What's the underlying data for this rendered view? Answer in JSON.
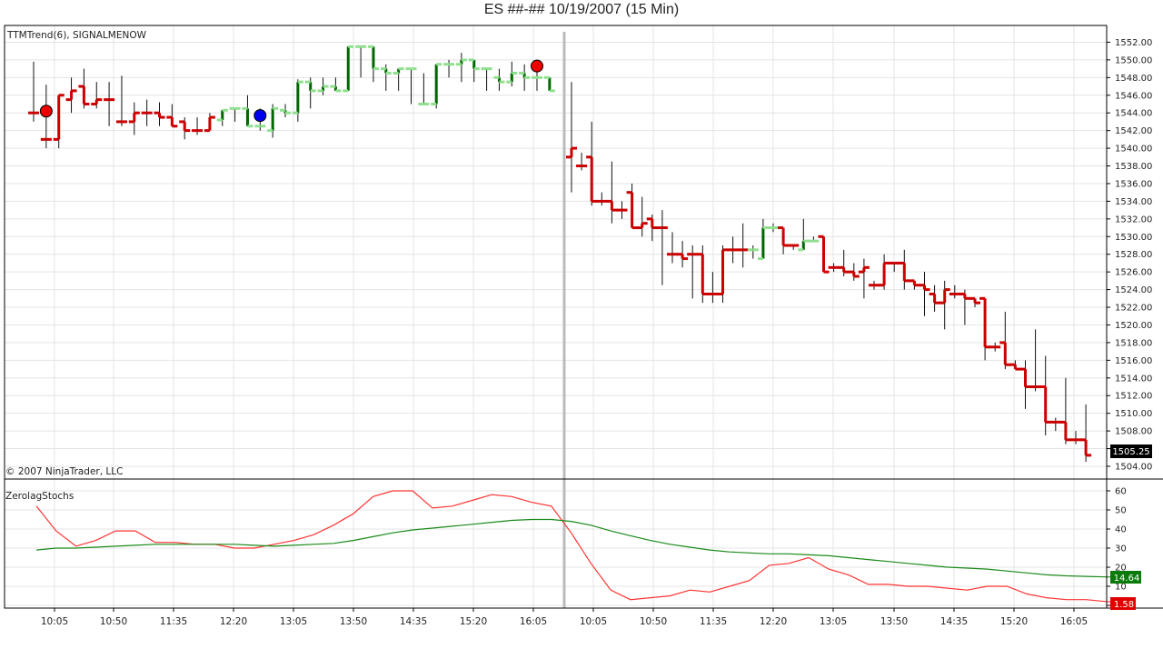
{
  "title": "ES ##-##  10/19/2007  (15 Min)",
  "colors": {
    "red": "#cc0000",
    "green": "#90e090",
    "dark_green": "#006600",
    "blue": "#0000ee",
    "signal_red": "#ee0000",
    "grid": "#e4e4e4",
    "stoch": "#ff3333",
    "stoch_signal": "#1a8a1a",
    "divider": "#bbbbbb"
  },
  "price_panel": {
    "indicator_label": "TTMTrend(6), SIGNALMENOW",
    "copyright": "© 2007 NinjaTrader, LLC",
    "last_price": "1505.25"
  },
  "stoch_panel": {
    "label": "ZerolagStochs",
    "badge_green": "14.64",
    "badge_red": "1.58"
  },
  "chart_data": [
    {
      "type": "ohlc",
      "title": "ES ##-##  10/19/2007  (15 Min)",
      "x_tick_labels": [
        "10:05",
        "10:50",
        "11:35",
        "12:20",
        "13:05",
        "13:50",
        "14:35",
        "15:20",
        "16:05",
        "10:05",
        "10:50",
        "11:35",
        "12:20",
        "13:05",
        "13:50",
        "14:35",
        "15:20",
        "16:05"
      ],
      "y_ticks": [
        "1504.00",
        "1506.00",
        "1508.00",
        "1510.00",
        "1512.00",
        "1514.00",
        "1516.00",
        "1518.00",
        "1520.00",
        "1522.00",
        "1524.00",
        "1526.00",
        "1528.00",
        "1530.00",
        "1532.00",
        "1534.00",
        "1536.00",
        "1538.00",
        "1540.00",
        "1542.00",
        "1544.00",
        "1546.00",
        "1548.00",
        "1550.00",
        "1552.00"
      ],
      "ylim": [
        1503,
        1553
      ],
      "grid": true,
      "bars_day1": [
        {
          "o": 1544,
          "h": 1549.8,
          "l": 1543,
          "c": 1544,
          "t": "r"
        },
        {
          "o": 1541,
          "h": 1547.2,
          "l": 1540,
          "c": 1541,
          "t": "r"
        },
        {
          "o": 1541,
          "h": 1546,
          "l": 1540,
          "c": 1546,
          "t": "r"
        },
        {
          "o": 1545.5,
          "h": 1548,
          "l": 1544,
          "c": 1546.5,
          "t": "r"
        },
        {
          "o": 1547,
          "h": 1549,
          "l": 1544.5,
          "c": 1545,
          "t": "r"
        },
        {
          "o": 1545,
          "h": 1547.5,
          "l": 1544.5,
          "c": 1545.5,
          "t": "r"
        },
        {
          "o": 1545.5,
          "h": 1547.5,
          "l": 1542.5,
          "c": 1545.5,
          "t": "r"
        },
        {
          "o": 1543,
          "h": 1548.2,
          "l": 1542.5,
          "c": 1543,
          "t": "r"
        },
        {
          "o": 1543,
          "h": 1545.2,
          "l": 1541.5,
          "c": 1544,
          "t": "r"
        },
        {
          "o": 1544,
          "h": 1545.5,
          "l": 1542.5,
          "c": 1544,
          "t": "r"
        },
        {
          "o": 1544,
          "h": 1545.2,
          "l": 1542.5,
          "c": 1543.5,
          "t": "r"
        },
        {
          "o": 1543.5,
          "h": 1545,
          "l": 1542.5,
          "c": 1542.5,
          "t": "r"
        },
        {
          "o": 1543,
          "h": 1543.5,
          "l": 1541,
          "c": 1542,
          "t": "r"
        },
        {
          "o": 1542,
          "h": 1543.5,
          "l": 1541.5,
          "c": 1542,
          "t": "r"
        },
        {
          "o": 1542,
          "h": 1544,
          "l": 1542.5,
          "c": 1543.5,
          "t": "r"
        },
        {
          "o": 1543.2,
          "h": 1544.3,
          "l": 1542.5,
          "c": 1544.3,
          "t": "g"
        },
        {
          "o": 1544.5,
          "h": 1544.5,
          "l": 1543,
          "c": 1544.5,
          "t": "g"
        },
        {
          "o": 1544.5,
          "h": 1546,
          "l": 1542.5,
          "c": 1542.5,
          "t": "g"
        },
        {
          "o": 1542.5,
          "h": 1544.5,
          "l": 1542,
          "c": 1542.5,
          "t": "g"
        },
        {
          "o": 1542,
          "h": 1545,
          "l": 1541.2,
          "c": 1544.5,
          "t": "g"
        },
        {
          "o": 1544.3,
          "h": 1545,
          "l": 1543.5,
          "c": 1544,
          "t": "g"
        },
        {
          "o": 1544,
          "h": 1547.8,
          "l": 1543,
          "c": 1547.5,
          "t": "g"
        },
        {
          "o": 1547.5,
          "h": 1548,
          "l": 1544.5,
          "c": 1546.5,
          "t": "g"
        },
        {
          "o": 1546.5,
          "h": 1548,
          "l": 1546,
          "c": 1547,
          "t": "g"
        },
        {
          "o": 1547,
          "h": 1548,
          "l": 1546.5,
          "c": 1546.5,
          "t": "g"
        },
        {
          "o": 1546.5,
          "h": 1551.5,
          "l": 1546.5,
          "c": 1551.5,
          "t": "g"
        },
        {
          "o": 1551.5,
          "h": 1551.5,
          "l": 1548,
          "c": 1551.5,
          "t": "g"
        },
        {
          "o": 1551.5,
          "h": 1551.5,
          "l": 1547.5,
          "c": 1549,
          "t": "g"
        },
        {
          "o": 1549,
          "h": 1549.5,
          "l": 1546.5,
          "c": 1548.5,
          "t": "g"
        },
        {
          "o": 1548.5,
          "h": 1549,
          "l": 1546.5,
          "c": 1549,
          "t": "g"
        },
        {
          "o": 1549,
          "h": 1549,
          "l": 1545,
          "c": 1549,
          "t": "g"
        },
        {
          "o": 1545,
          "h": 1548.5,
          "l": 1545,
          "c": 1545,
          "t": "g"
        },
        {
          "o": 1545,
          "h": 1549.5,
          "l": 1544.5,
          "c": 1549.5,
          "t": "g"
        },
        {
          "o": 1549.5,
          "h": 1550,
          "l": 1548,
          "c": 1549.5,
          "t": "g"
        },
        {
          "o": 1549.5,
          "h": 1550.8,
          "l": 1547.5,
          "c": 1550,
          "t": "g"
        },
        {
          "o": 1550,
          "h": 1550,
          "l": 1547.5,
          "c": 1549,
          "t": "g"
        },
        {
          "o": 1549,
          "h": 1549,
          "l": 1546.5,
          "c": 1549,
          "t": "g"
        },
        {
          "o": 1548,
          "h": 1549,
          "l": 1546.5,
          "c": 1547.5,
          "t": "g"
        },
        {
          "o": 1547.5,
          "h": 1549.8,
          "l": 1547,
          "c": 1548.5,
          "t": "g"
        },
        {
          "o": 1548.5,
          "h": 1549.5,
          "l": 1546.5,
          "c": 1548,
          "t": "g"
        },
        {
          "o": 1548,
          "h": 1550,
          "l": 1546.5,
          "c": 1548,
          "t": "g"
        },
        {
          "o": 1548,
          "h": 1548,
          "l": 1546.5,
          "c": 1546.5,
          "t": "g"
        }
      ],
      "bars_day2": [
        {
          "o": 1539,
          "h": 1547.5,
          "l": 1535,
          "c": 1540,
          "t": "r"
        },
        {
          "o": 1538,
          "h": 1539.5,
          "l": 1537.5,
          "c": 1538,
          "t": "r"
        },
        {
          "o": 1539,
          "h": 1543,
          "l": 1533.5,
          "c": 1534,
          "t": "r"
        },
        {
          "o": 1534,
          "h": 1535,
          "l": 1533.5,
          "c": 1534,
          "t": "r"
        },
        {
          "o": 1534,
          "h": 1538.5,
          "l": 1531.5,
          "c": 1533,
          "t": "r"
        },
        {
          "o": 1533,
          "h": 1534,
          "l": 1532,
          "c": 1533,
          "t": "r"
        },
        {
          "o": 1535,
          "h": 1536,
          "l": 1531,
          "c": 1531,
          "t": "r"
        },
        {
          "o": 1531,
          "h": 1534.5,
          "l": 1530,
          "c": 1531.5,
          "t": "r"
        },
        {
          "o": 1532,
          "h": 1532.5,
          "l": 1529.5,
          "c": 1531,
          "t": "r"
        },
        {
          "o": 1531,
          "h": 1533,
          "l": 1524.5,
          "c": 1531,
          "t": "r"
        },
        {
          "o": 1528,
          "h": 1530.5,
          "l": 1527,
          "c": 1528,
          "t": "r"
        },
        {
          "o": 1528,
          "h": 1529.5,
          "l": 1526.5,
          "c": 1527.5,
          "t": "r"
        },
        {
          "o": 1528,
          "h": 1529,
          "l": 1523,
          "c": 1528,
          "t": "r"
        },
        {
          "o": 1528,
          "h": 1529,
          "l": 1522.5,
          "c": 1523.5,
          "t": "r"
        },
        {
          "o": 1523.5,
          "h": 1526,
          "l": 1522.5,
          "c": 1523.5,
          "t": "r"
        },
        {
          "o": 1523.5,
          "h": 1529,
          "l": 1522.5,
          "c": 1528.5,
          "t": "r"
        },
        {
          "o": 1528.5,
          "h": 1530,
          "l": 1527,
          "c": 1528.5,
          "t": "r"
        },
        {
          "o": 1528.5,
          "h": 1531.5,
          "l": 1526.5,
          "c": 1528.5,
          "t": "r"
        },
        {
          "o": 1528.5,
          "h": 1529,
          "l": 1527.5,
          "c": 1528.5,
          "t": "g"
        },
        {
          "o": 1527.5,
          "h": 1532,
          "l": 1527.5,
          "c": 1531,
          "t": "g"
        },
        {
          "o": 1531,
          "h": 1531.5,
          "l": 1530.5,
          "c": 1531,
          "t": "g"
        },
        {
          "o": 1531,
          "h": 1531,
          "l": 1528,
          "c": 1529,
          "t": "r"
        },
        {
          "o": 1529,
          "h": 1529,
          "l": 1528.5,
          "c": 1529,
          "t": "r"
        },
        {
          "o": 1528.5,
          "h": 1532,
          "l": 1528.5,
          "c": 1529.5,
          "t": "g"
        },
        {
          "o": 1529.5,
          "h": 1530,
          "l": 1529.5,
          "c": 1529.5,
          "t": "g"
        },
        {
          "o": 1530,
          "h": 1530,
          "l": 1526,
          "c": 1526,
          "t": "r"
        },
        {
          "o": 1526.5,
          "h": 1527,
          "l": 1526,
          "c": 1526.5,
          "t": "r"
        },
        {
          "o": 1526.5,
          "h": 1528.5,
          "l": 1525.5,
          "c": 1526,
          "t": "r"
        },
        {
          "o": 1526,
          "h": 1527,
          "l": 1525,
          "c": 1525.5,
          "t": "r"
        },
        {
          "o": 1526,
          "h": 1527.5,
          "l": 1523,
          "c": 1526.5,
          "t": "r"
        },
        {
          "o": 1524.5,
          "h": 1525,
          "l": 1524,
          "c": 1524.5,
          "t": "r"
        },
        {
          "o": 1524.5,
          "h": 1528,
          "l": 1524,
          "c": 1527,
          "t": "r"
        },
        {
          "o": 1527,
          "h": 1527,
          "l": 1526,
          "c": 1527,
          "t": "r"
        },
        {
          "o": 1527,
          "h": 1528.5,
          "l": 1524,
          "c": 1525,
          "t": "r"
        },
        {
          "o": 1525,
          "h": 1525,
          "l": 1524,
          "c": 1524.5,
          "t": "r"
        },
        {
          "o": 1524.5,
          "h": 1526,
          "l": 1521,
          "c": 1524,
          "t": "r"
        },
        {
          "o": 1523.5,
          "h": 1524.5,
          "l": 1521.5,
          "c": 1522.5,
          "t": "r"
        },
        {
          "o": 1522.5,
          "h": 1525,
          "l": 1519.5,
          "c": 1524,
          "t": "r"
        },
        {
          "o": 1523.5,
          "h": 1524.5,
          "l": 1523,
          "c": 1523.5,
          "t": "r"
        },
        {
          "o": 1523.5,
          "h": 1524,
          "l": 1520,
          "c": 1523,
          "t": "r"
        },
        {
          "o": 1523,
          "h": 1523,
          "l": 1522,
          "c": 1522.5,
          "t": "r"
        },
        {
          "o": 1523,
          "h": 1523,
          "l": 1516,
          "c": 1517.5,
          "t": "r"
        },
        {
          "o": 1517.5,
          "h": 1518,
          "l": 1517,
          "c": 1517.5,
          "t": "r"
        },
        {
          "o": 1518,
          "h": 1521.5,
          "l": 1515,
          "c": 1515.5,
          "t": "r"
        },
        {
          "o": 1515.5,
          "h": 1516,
          "l": 1515,
          "c": 1515,
          "t": "r"
        },
        {
          "o": 1515,
          "h": 1516,
          "l": 1510.5,
          "c": 1513,
          "t": "r"
        },
        {
          "o": 1513,
          "h": 1519.5,
          "l": 1512.5,
          "c": 1513,
          "t": "r"
        },
        {
          "o": 1513,
          "h": 1516.5,
          "l": 1507.5,
          "c": 1509,
          "t": "r"
        },
        {
          "o": 1509,
          "h": 1509.5,
          "l": 1508,
          "c": 1509,
          "t": "r"
        },
        {
          "o": 1509,
          "h": 1514,
          "l": 1506.5,
          "c": 1507,
          "t": "r"
        },
        {
          "o": 1507,
          "h": 1508,
          "l": 1506.5,
          "c": 1507,
          "t": "r"
        },
        {
          "o": 1507,
          "h": 1511,
          "l": 1504.5,
          "c": 1505.25,
          "t": "r"
        }
      ],
      "signals": [
        {
          "kind": "sell",
          "bar": 1,
          "day": 1,
          "price": 1544.2
        },
        {
          "kind": "buy",
          "bar": 18,
          "day": 1,
          "price": 1543.7
        },
        {
          "kind": "sell",
          "bar": 40,
          "day": 1,
          "price": 1549.3
        }
      ]
    },
    {
      "type": "line",
      "title": "ZerolagStochs",
      "y_ticks": [
        "0",
        "10",
        "20",
        "30",
        "40",
        "50",
        "60"
      ],
      "ylim": [
        0,
        65
      ],
      "grid": true,
      "x_index": [
        0,
        1,
        2,
        3,
        4,
        5,
        6,
        7,
        8,
        9,
        10,
        11,
        12,
        13,
        14,
        15,
        16,
        17,
        18,
        19,
        20,
        21,
        22,
        23,
        24,
        25,
        26,
        27,
        28,
        29,
        30,
        31,
        32,
        33,
        34,
        35,
        36,
        37,
        38,
        39,
        40,
        41,
        42,
        43,
        44,
        45,
        46,
        47,
        48,
        49,
        50,
        51,
        52,
        53,
        54,
        55
      ],
      "series": [
        {
          "values": [
            52,
            39,
            31,
            34,
            39,
            39,
            33,
            33,
            32,
            32,
            30,
            30,
            32,
            34,
            37,
            42,
            48,
            57,
            60,
            60,
            51,
            52,
            55,
            58,
            57,
            54,
            52,
            38,
            22,
            8,
            3,
            4,
            5,
            8,
            7,
            10,
            13,
            21,
            22,
            25,
            19,
            16,
            11,
            11,
            10,
            10,
            9,
            8,
            10,
            10,
            6,
            4,
            3,
            3,
            2,
            1.58
          ]
        },
        {
          "values": [
            29,
            30,
            30,
            30.5,
            31,
            31.5,
            32,
            32,
            32,
            32,
            32,
            31.5,
            31,
            31.5,
            32,
            32.5,
            34,
            36,
            38,
            39.5,
            40.5,
            41.5,
            42.5,
            43.5,
            44.5,
            45,
            45,
            44,
            42,
            39,
            36.5,
            34,
            32,
            30.5,
            29,
            28,
            27.5,
            27,
            27,
            26.5,
            26,
            25,
            24,
            23,
            22,
            21,
            20,
            19.5,
            19,
            18,
            17,
            16,
            15.5,
            15.2,
            14.9,
            14.64
          ]
        }
      ]
    }
  ]
}
